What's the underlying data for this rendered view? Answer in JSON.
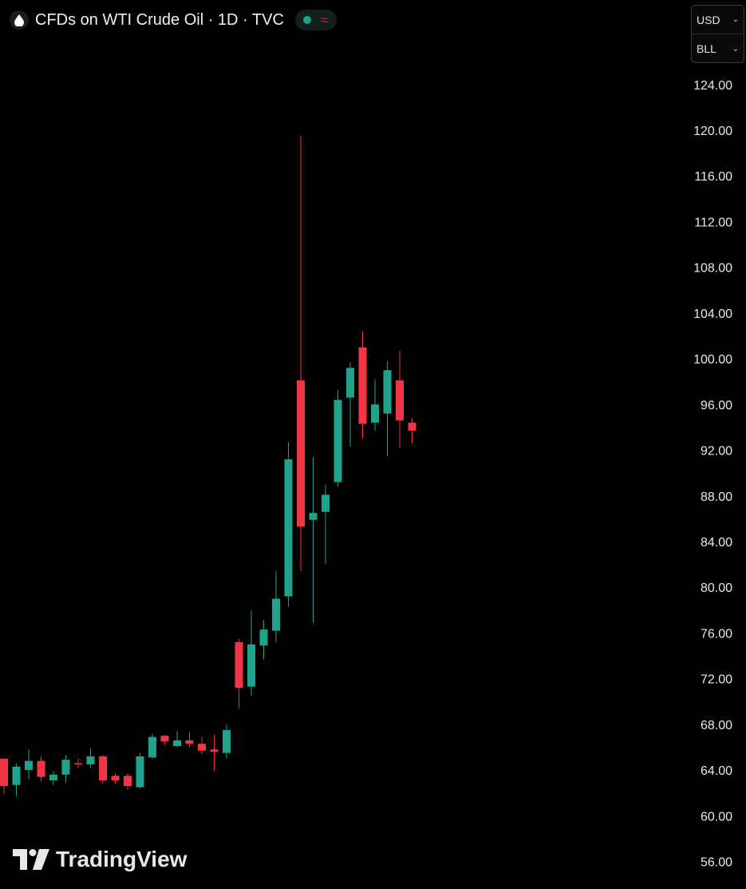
{
  "header": {
    "title": "CFDs on WTI Crude Oil · 1D · TVC",
    "icon": "oil-drop-icon",
    "status_wave": "≈"
  },
  "units": {
    "currency": "USD",
    "unit": "BLL"
  },
  "brand": {
    "name": "TradingView"
  },
  "colors": {
    "up": "#1fa38b",
    "down": "#f23645",
    "background": "#000000",
    "axis_text": "#e8e8e8"
  },
  "chart_data": {
    "type": "candlestick",
    "ylim": [
      54.5,
      126.5
    ],
    "yticks": [
      "124.00",
      "120.00",
      "116.00",
      "112.00",
      "108.00",
      "104.00",
      "100.00",
      "96.00",
      "92.00",
      "88.00",
      "84.00",
      "80.00",
      "76.00",
      "72.00",
      "68.00",
      "64.00",
      "60.00",
      "56.00"
    ],
    "grid": false,
    "candles": [
      {
        "o": 65.0,
        "h": 65.0,
        "l": 61.9,
        "c": 62.6
      },
      {
        "o": 62.7,
        "h": 64.6,
        "l": 61.7,
        "c": 64.3
      },
      {
        "o": 64.0,
        "h": 65.8,
        "l": 63.2,
        "c": 64.8
      },
      {
        "o": 64.8,
        "h": 65.2,
        "l": 63.0,
        "c": 63.4
      },
      {
        "o": 63.1,
        "h": 63.9,
        "l": 62.7,
        "c": 63.6
      },
      {
        "o": 63.6,
        "h": 65.3,
        "l": 62.9,
        "c": 64.9
      },
      {
        "o": 64.6,
        "h": 65.0,
        "l": 64.2,
        "c": 64.5
      },
      {
        "o": 64.5,
        "h": 65.9,
        "l": 64.2,
        "c": 65.2
      },
      {
        "o": 65.2,
        "h": 65.3,
        "l": 62.8,
        "c": 63.1
      },
      {
        "o": 63.5,
        "h": 63.7,
        "l": 62.8,
        "c": 63.1
      },
      {
        "o": 63.5,
        "h": 63.7,
        "l": 62.3,
        "c": 62.6
      },
      {
        "o": 62.5,
        "h": 65.5,
        "l": 62.4,
        "c": 65.2
      },
      {
        "o": 65.1,
        "h": 67.2,
        "l": 65.0,
        "c": 66.9
      },
      {
        "o": 67.0,
        "h": 67.1,
        "l": 66.2,
        "c": 66.5
      },
      {
        "o": 66.1,
        "h": 67.4,
        "l": 66.0,
        "c": 66.6
      },
      {
        "o": 66.6,
        "h": 67.3,
        "l": 66.0,
        "c": 66.3
      },
      {
        "o": 66.3,
        "h": 66.9,
        "l": 65.4,
        "c": 65.7
      },
      {
        "o": 65.8,
        "h": 67.1,
        "l": 63.9,
        "c": 65.6
      },
      {
        "o": 65.5,
        "h": 68.0,
        "l": 65.0,
        "c": 67.5
      },
      {
        "o": 75.2,
        "h": 75.5,
        "l": 69.4,
        "c": 71.2
      },
      {
        "o": 71.3,
        "h": 78.0,
        "l": 70.5,
        "c": 75.0
      },
      {
        "o": 74.9,
        "h": 77.1,
        "l": 73.7,
        "c": 76.3
      },
      {
        "o": 76.2,
        "h": 81.4,
        "l": 75.2,
        "c": 79.0
      },
      {
        "o": 79.2,
        "h": 92.7,
        "l": 78.3,
        "c": 91.2
      },
      {
        "o": 98.1,
        "h": 119.5,
        "l": 81.4,
        "c": 85.3
      },
      {
        "o": 85.9,
        "h": 91.4,
        "l": 76.9,
        "c": 86.5
      },
      {
        "o": 86.6,
        "h": 89.0,
        "l": 82.0,
        "c": 88.1
      },
      {
        "o": 89.2,
        "h": 97.3,
        "l": 88.8,
        "c": 96.4
      },
      {
        "o": 96.6,
        "h": 99.7,
        "l": 92.3,
        "c": 99.2
      },
      {
        "o": 101.0,
        "h": 102.4,
        "l": 93.0,
        "c": 94.3
      },
      {
        "o": 94.4,
        "h": 98.2,
        "l": 93.7,
        "c": 96.0
      },
      {
        "o": 95.2,
        "h": 99.8,
        "l": 91.5,
        "c": 99.0
      },
      {
        "o": 98.1,
        "h": 100.7,
        "l": 92.2,
        "c": 94.6
      },
      {
        "o": 94.4,
        "h": 94.8,
        "l": 92.6,
        "c": 93.7
      }
    ]
  }
}
